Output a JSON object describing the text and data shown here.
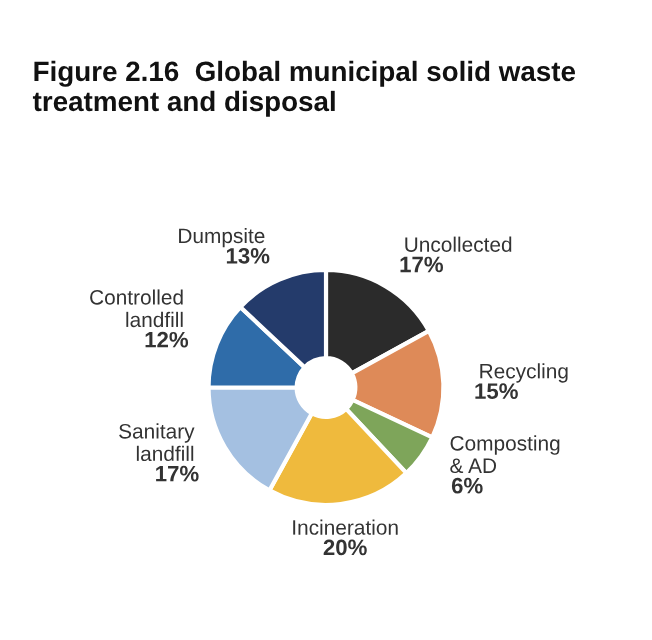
{
  "chart_data": {
    "type": "donut",
    "title": "Figure 2.16  Global municipal solid waste treatment and disposal",
    "categories": [
      "Uncollected",
      "Recycling",
      "Composting\n& AD",
      "Incineration",
      "Sanitary\nlandfill",
      "Controlled\nlandfill",
      "Dumpsite"
    ],
    "values": [
      17,
      15,
      6,
      20,
      17,
      12,
      13
    ],
    "colors": [
      "#2b2b2b",
      "#de8a58",
      "#7ea55a",
      "#efba3d",
      "#a4c0e1",
      "#2f6ca9",
      "#243b6b"
    ],
    "value_labels": [
      "17%",
      "15%",
      "6%",
      "20%",
      "17%",
      "12%",
      "13%"
    ],
    "legend": false
  }
}
